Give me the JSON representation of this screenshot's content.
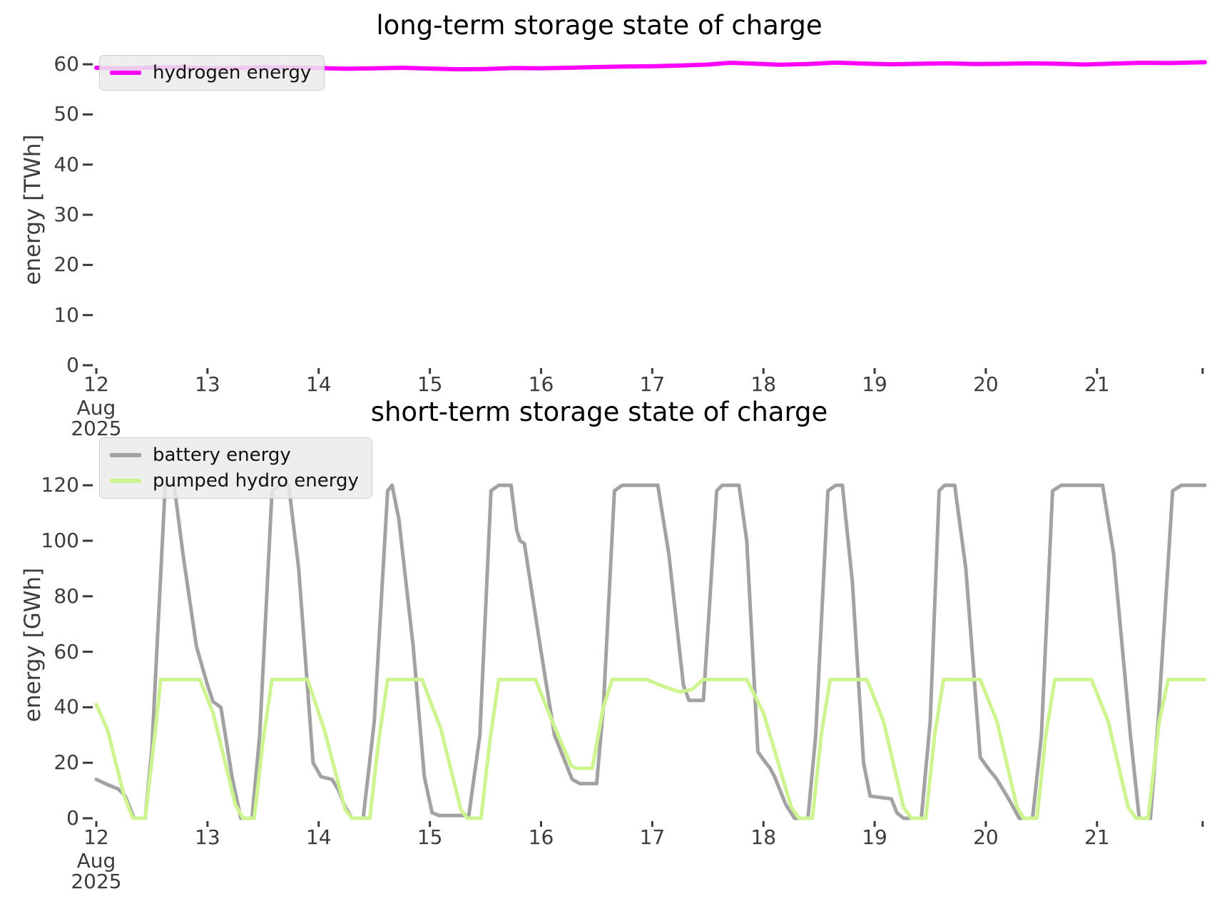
{
  "figure_background": "#ffffff",
  "text_color": "#3c3c3c",
  "title_color": "#000000",
  "chart_data": [
    {
      "type": "line",
      "title": "long-term storage state of charge",
      "ylabel": "energy [TWh]",
      "xlim": [
        12,
        21.97
      ],
      "ylim": [
        0,
        62.15
      ],
      "grid": false,
      "legend_position": "upper-left",
      "x_ticks": [
        12,
        13,
        14,
        15,
        16,
        17,
        18,
        19,
        20,
        21
      ],
      "x_tick_labels": [
        "12",
        "13",
        "14",
        "15",
        "16",
        "17",
        "18",
        "19",
        "20",
        "21"
      ],
      "x_first_tick_sublabels": [
        "Aug",
        "2025"
      ],
      "edge_tick": 21.95,
      "y_ticks": [
        0,
        10,
        20,
        30,
        40,
        50,
        60
      ],
      "y_tick_labels": [
        "0",
        "10",
        "20",
        "30",
        "40",
        "50",
        "60"
      ],
      "legend": [
        {
          "label": "hydrogen energy",
          "color": "#ff00ff"
        }
      ],
      "series": [
        {
          "name": "hydrogen energy",
          "color": "#ff00ff",
          "width": 6,
          "points": [
            [
              12.0,
              59.3
            ],
            [
              12.25,
              59.15
            ],
            [
              12.5,
              59.35
            ],
            [
              12.75,
              59.4
            ],
            [
              13.0,
              59.25
            ],
            [
              13.2,
              59.2
            ],
            [
              13.5,
              59.4
            ],
            [
              13.75,
              59.35
            ],
            [
              14.0,
              59.25
            ],
            [
              14.25,
              59.1
            ],
            [
              14.5,
              59.2
            ],
            [
              14.75,
              59.3
            ],
            [
              15.0,
              59.15
            ],
            [
              15.25,
              59.0
            ],
            [
              15.5,
              59.05
            ],
            [
              15.75,
              59.25
            ],
            [
              16.0,
              59.2
            ],
            [
              16.25,
              59.3
            ],
            [
              16.5,
              59.45
            ],
            [
              16.75,
              59.55
            ],
            [
              17.0,
              59.6
            ],
            [
              17.25,
              59.75
            ],
            [
              17.5,
              59.95
            ],
            [
              17.7,
              60.3
            ],
            [
              17.9,
              60.15
            ],
            [
              18.15,
              59.9
            ],
            [
              18.4,
              60.05
            ],
            [
              18.65,
              60.35
            ],
            [
              18.9,
              60.15
            ],
            [
              19.15,
              60.0
            ],
            [
              19.4,
              60.1
            ],
            [
              19.65,
              60.2
            ],
            [
              19.9,
              60.05
            ],
            [
              20.15,
              60.1
            ],
            [
              20.4,
              60.2
            ],
            [
              20.65,
              60.1
            ],
            [
              20.9,
              59.95
            ],
            [
              21.15,
              60.15
            ],
            [
              21.4,
              60.3
            ],
            [
              21.65,
              60.25
            ],
            [
              21.97,
              60.4
            ]
          ]
        }
      ]
    },
    {
      "type": "line",
      "title": "short-term storage state of charge",
      "ylabel": "energy [GWh]",
      "xlim": [
        12,
        21.97
      ],
      "ylim": [
        0,
        125.2
      ],
      "grid": false,
      "legend_position": "upper-left",
      "x_ticks": [
        12,
        13,
        14,
        15,
        16,
        17,
        18,
        19,
        20,
        21
      ],
      "x_tick_labels": [
        "12",
        "13",
        "14",
        "15",
        "16",
        "17",
        "18",
        "19",
        "20",
        "21"
      ],
      "x_first_tick_sublabels": [
        "Aug",
        "2025"
      ],
      "edge_tick": 21.95,
      "y_ticks": [
        0,
        20,
        40,
        60,
        80,
        100,
        120
      ],
      "y_tick_labels": [
        "0",
        "20",
        "40",
        "60",
        "80",
        "100",
        "120"
      ],
      "legend": [
        {
          "label": "battery energy",
          "color": "#a2a2a2"
        },
        {
          "label": "pumped hydro energy",
          "color": "#cdf48f"
        }
      ],
      "series": [
        {
          "name": "battery energy",
          "color": "#a2a2a2",
          "width": 5,
          "points": [
            [
              12.0,
              14
            ],
            [
              12.08,
              12.5
            ],
            [
              12.2,
              10.5
            ],
            [
              12.26,
              8
            ],
            [
              12.3,
              4
            ],
            [
              12.34,
              0
            ],
            [
              12.44,
              0
            ],
            [
              12.5,
              25
            ],
            [
              12.62,
              120
            ],
            [
              12.7,
              120
            ],
            [
              12.78,
              95
            ],
            [
              12.9,
              62
            ],
            [
              13.0,
              48
            ],
            [
              13.05,
              42
            ],
            [
              13.12,
              40
            ],
            [
              13.22,
              15
            ],
            [
              13.3,
              0
            ],
            [
              13.4,
              0
            ],
            [
              13.47,
              30
            ],
            [
              13.58,
              118
            ],
            [
              13.65,
              120
            ],
            [
              13.73,
              120
            ],
            [
              13.82,
              90
            ],
            [
              13.95,
              20
            ],
            [
              14.02,
              15
            ],
            [
              14.12,
              14
            ],
            [
              14.18,
              10
            ],
            [
              14.24,
              4
            ],
            [
              14.3,
              0
            ],
            [
              14.4,
              0
            ],
            [
              14.5,
              35
            ],
            [
              14.62,
              118
            ],
            [
              14.66,
              120
            ],
            [
              14.72,
              108
            ],
            [
              14.85,
              62
            ],
            [
              14.95,
              15
            ],
            [
              15.02,
              2
            ],
            [
              15.08,
              1
            ],
            [
              15.35,
              1
            ],
            [
              15.45,
              30
            ],
            [
              15.55,
              118
            ],
            [
              15.62,
              120
            ],
            [
              15.73,
              120
            ],
            [
              15.78,
              104
            ],
            [
              15.81,
              100
            ],
            [
              15.85,
              99
            ],
            [
              16.0,
              60
            ],
            [
              16.12,
              30
            ],
            [
              16.28,
              14
            ],
            [
              16.35,
              12.5
            ],
            [
              16.5,
              12.5
            ],
            [
              16.56,
              40
            ],
            [
              16.66,
              118
            ],
            [
              16.73,
              120
            ],
            [
              17.05,
              120
            ],
            [
              17.15,
              95
            ],
            [
              17.28,
              48
            ],
            [
              17.33,
              42.5
            ],
            [
              17.46,
              42.5
            ],
            [
              17.52,
              80
            ],
            [
              17.58,
              118
            ],
            [
              17.63,
              120
            ],
            [
              17.78,
              120
            ],
            [
              17.85,
              100
            ],
            [
              17.95,
              24
            ],
            [
              18.02,
              20
            ],
            [
              18.06,
              18
            ],
            [
              18.1,
              15
            ],
            [
              18.2,
              5
            ],
            [
              18.28,
              0
            ],
            [
              18.4,
              0
            ],
            [
              18.47,
              30
            ],
            [
              18.58,
              118
            ],
            [
              18.65,
              120
            ],
            [
              18.71,
              120
            ],
            [
              18.8,
              85
            ],
            [
              18.9,
              20
            ],
            [
              18.96,
              8
            ],
            [
              19.15,
              7
            ],
            [
              19.2,
              2
            ],
            [
              19.26,
              0
            ],
            [
              19.42,
              0
            ],
            [
              19.5,
              35
            ],
            [
              19.58,
              118
            ],
            [
              19.63,
              120
            ],
            [
              19.72,
              120
            ],
            [
              19.82,
              90
            ],
            [
              19.95,
              22
            ],
            [
              20.02,
              18
            ],
            [
              20.1,
              14
            ],
            [
              20.22,
              6
            ],
            [
              20.3,
              0
            ],
            [
              20.42,
              0
            ],
            [
              20.5,
              30
            ],
            [
              20.6,
              118
            ],
            [
              20.68,
              120
            ],
            [
              21.05,
              120
            ],
            [
              21.15,
              95
            ],
            [
              21.3,
              30
            ],
            [
              21.38,
              0
            ],
            [
              21.48,
              0
            ],
            [
              21.55,
              35
            ],
            [
              21.68,
              118
            ],
            [
              21.76,
              120
            ],
            [
              21.97,
              120
            ]
          ]
        },
        {
          "name": "pumped hydro energy",
          "color": "#cdf48f",
          "width": 5,
          "points": [
            [
              12.0,
              41
            ],
            [
              12.1,
              32
            ],
            [
              12.25,
              8
            ],
            [
              12.33,
              0
            ],
            [
              12.44,
              0
            ],
            [
              12.52,
              28
            ],
            [
              12.58,
              50
            ],
            [
              12.93,
              50
            ],
            [
              13.05,
              38
            ],
            [
              13.25,
              5
            ],
            [
              13.32,
              0
            ],
            [
              13.42,
              0
            ],
            [
              13.5,
              28
            ],
            [
              13.58,
              50
            ],
            [
              13.9,
              50
            ],
            [
              14.05,
              32
            ],
            [
              14.24,
              3
            ],
            [
              14.3,
              0
            ],
            [
              14.46,
              0
            ],
            [
              14.54,
              28
            ],
            [
              14.62,
              50
            ],
            [
              14.93,
              50
            ],
            [
              15.1,
              32
            ],
            [
              15.28,
              3
            ],
            [
              15.34,
              0
            ],
            [
              15.46,
              0
            ],
            [
              15.54,
              28
            ],
            [
              15.62,
              50
            ],
            [
              15.95,
              50
            ],
            [
              16.1,
              35
            ],
            [
              16.27,
              19
            ],
            [
              16.32,
              18
            ],
            [
              16.46,
              18
            ],
            [
              16.56,
              40
            ],
            [
              16.64,
              50
            ],
            [
              16.95,
              50
            ],
            [
              17.1,
              47.5
            ],
            [
              17.25,
              45.5
            ],
            [
              17.36,
              46.5
            ],
            [
              17.46,
              50
            ],
            [
              17.85,
              50
            ],
            [
              18.0,
              38
            ],
            [
              18.25,
              4
            ],
            [
              18.32,
              0
            ],
            [
              18.44,
              0
            ],
            [
              18.52,
              30
            ],
            [
              18.6,
              50
            ],
            [
              18.93,
              50
            ],
            [
              19.08,
              35
            ],
            [
              19.26,
              4
            ],
            [
              19.33,
              0
            ],
            [
              19.46,
              0
            ],
            [
              19.54,
              30
            ],
            [
              19.62,
              50
            ],
            [
              19.95,
              50
            ],
            [
              20.1,
              35
            ],
            [
              20.28,
              4
            ],
            [
              20.34,
              0
            ],
            [
              20.46,
              0
            ],
            [
              20.54,
              30
            ],
            [
              20.62,
              50
            ],
            [
              20.95,
              50
            ],
            [
              21.1,
              35
            ],
            [
              21.28,
              4
            ],
            [
              21.35,
              0
            ],
            [
              21.46,
              0
            ],
            [
              21.56,
              35
            ],
            [
              21.64,
              50
            ],
            [
              21.97,
              50
            ]
          ]
        }
      ]
    }
  ]
}
